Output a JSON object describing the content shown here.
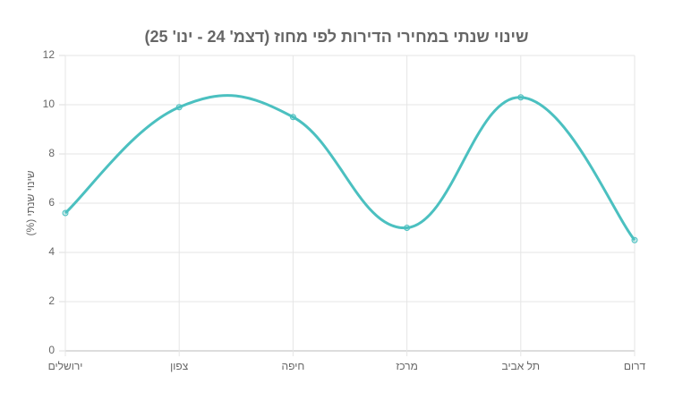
{
  "chart_data": {
    "type": "line",
    "title": "שינוי שנתי במחירי הדירות לפי מחוז (דצמ' 24 - ינו' 25)",
    "y_label": "שינוי שנתי (%)",
    "categories": [
      "ירושלים",
      "צפון",
      "חיפה",
      "מרכז",
      "תל אביב",
      "דרום"
    ],
    "values": [
      5.6,
      9.9,
      9.5,
      5.0,
      10.3,
      4.5
    ],
    "color": "#4bc0c0",
    "ylim": [
      0,
      12
    ],
    "yticks": [
      0,
      2,
      4,
      6,
      8,
      10,
      12
    ],
    "grid": true
  }
}
